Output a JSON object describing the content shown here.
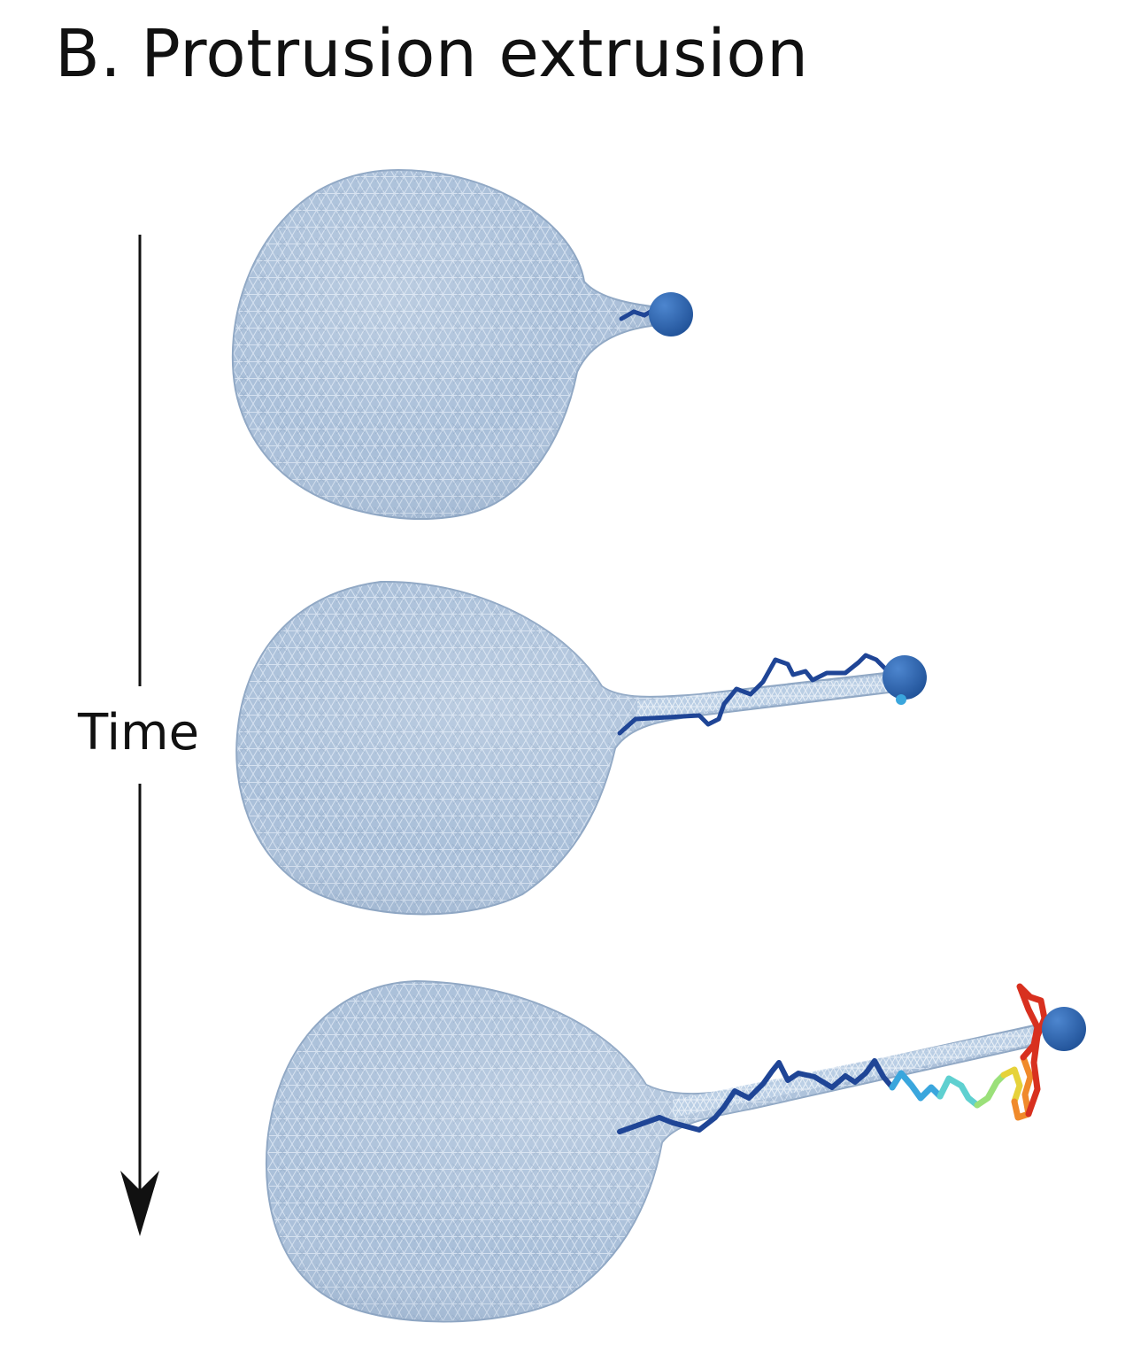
{
  "figure": {
    "panel_letter": "B.",
    "title": "Protrusion extrusion",
    "time_label": "Time",
    "frames": [
      {
        "stage": 1
      },
      {
        "stage": 2
      },
      {
        "stage": 3
      }
    ]
  },
  "colors": {
    "mesh_fill": "#a9bfd9",
    "mesh_line": "#dbe6f2",
    "mesh_edge": "#8fa7c4",
    "bead": "#2a62ad",
    "filament_dark": "#1f4596",
    "gradient": [
      "#1f4596",
      "#3aa6dd",
      "#5fd0d0",
      "#9be07a",
      "#e6d23a",
      "#f08a2a",
      "#d8301f"
    ],
    "text": "#111111"
  }
}
